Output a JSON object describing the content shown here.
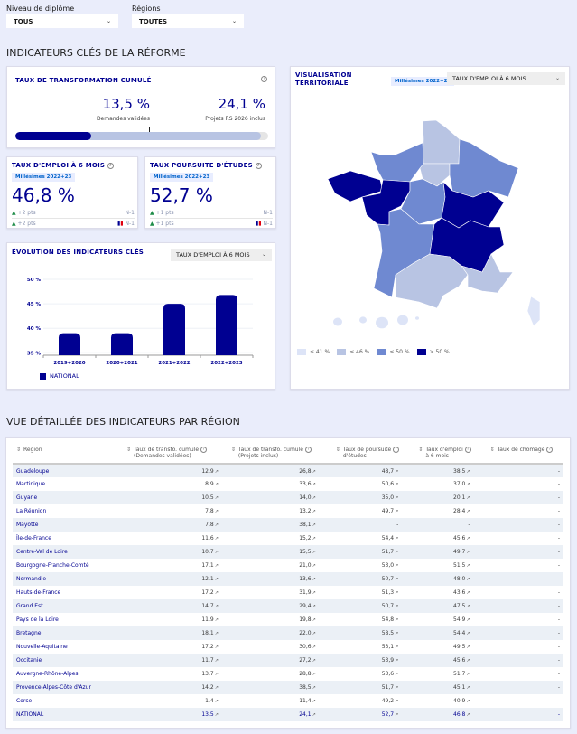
{
  "filters": {
    "diploma_label": "Niveau de diplôme",
    "diploma_value": "TOUS",
    "region_label": "Régions",
    "region_value": "TOUTES"
  },
  "section1_title": "INDICATEURS CLÉS DE LA RÉFORME",
  "transformation": {
    "title": "TAUX DE TRANSFORMATION CUMULÉ",
    "value1": "13,5 %",
    "label1": "Demandes validées",
    "value2": "24,1 %",
    "label2": "Projets RS 2026 inclus",
    "progress1_pct": 13.5,
    "progress2_pct": 24.1
  },
  "emploi": {
    "title": "TAUX D'EMPLOI À 6 MOIS",
    "badge": "Millésimes 2022+23",
    "value": "46,8 %",
    "trend1": "+2 pts",
    "trend1_ref": "N-1",
    "trend2": "+2 pts",
    "trend2_ref": "N-1"
  },
  "poursuite": {
    "title": "TAUX POURSUITE D'ÉTUDES",
    "badge": "Millésimes 2022+23",
    "value": "52,7 %",
    "trend1": "+1 pts",
    "trend1_ref": "N-1",
    "trend2": "+1 pts",
    "trend2_ref": "N-1"
  },
  "evolution": {
    "title": "ÉVOLUTION DES INDICATEURS CLÉS",
    "dropdown": "TAUX D'EMPLOI À 6 MOIS"
  },
  "chart_data": {
    "type": "bar",
    "categories": [
      "2019+2020",
      "2020+2021",
      "2021+2022",
      "2022+2023"
    ],
    "series": [
      {
        "name": "NATIONAL",
        "values": [
          39,
          39,
          45,
          46.8
        ]
      }
    ],
    "yticks": [
      "35 %",
      "40 %",
      "45 %",
      "50 %"
    ],
    "ylim": [
      34.5,
      50
    ],
    "grid": true,
    "legend_position": "bottom-left",
    "color": "#000091"
  },
  "map": {
    "title1": "VISUALISATION",
    "title2": "TERRITORIALE",
    "badge": "Millésimes 2022+23",
    "dropdown": "TAUX D'EMPLOI À 6 MOIS",
    "legend": [
      {
        "label": "≤ 41 %",
        "color": "#dde4f7"
      },
      {
        "label": "≤ 46 %",
        "color": "#b8c4e3"
      },
      {
        "label": "≤ 50 %",
        "color": "#6f89d1"
      },
      {
        "label": "> 50 %",
        "color": "#000091"
      }
    ]
  },
  "section2_title": "VUE DÉTAILLÉE DES INDICATEURS PAR RÉGION",
  "table": {
    "headers": [
      [
        "Région",
        ""
      ],
      [
        "Taux de transfo. cumulé",
        "(Demandes validées)"
      ],
      [
        "Taux de transfo. cumulé",
        "(Projets inclus)"
      ],
      [
        "Taux de poursuite",
        "d'études"
      ],
      [
        "Taux d'emploi",
        "à 6 mois"
      ],
      [
        "Taux de chômage",
        ""
      ]
    ],
    "rows": [
      [
        "Guadeloupe",
        "12,9",
        "26,8",
        "48,7",
        "38,5",
        "-"
      ],
      [
        "Martinique",
        "8,9",
        "33,6",
        "50,6",
        "37,0",
        "-"
      ],
      [
        "Guyane",
        "10,5",
        "14,0",
        "35,0",
        "20,1",
        "-"
      ],
      [
        "La Réunion",
        "7,8",
        "13,2",
        "49,7",
        "28,4",
        "-"
      ],
      [
        "Mayotte",
        "7,8",
        "38,1",
        "-",
        "-",
        "-"
      ],
      [
        "Île-de-France",
        "11,6",
        "15,2",
        "54,4",
        "45,6",
        "-"
      ],
      [
        "Centre-Val de Loire",
        "10,7",
        "15,5",
        "51,7",
        "49,7",
        "-"
      ],
      [
        "Bourgogne-Franche-Comté",
        "17,1",
        "21,0",
        "53,0",
        "51,5",
        "-"
      ],
      [
        "Normandie",
        "12,1",
        "13,6",
        "50,7",
        "48,0",
        "-"
      ],
      [
        "Hauts-de-France",
        "17,2",
        "31,9",
        "51,3",
        "43,6",
        "-"
      ],
      [
        "Grand Est",
        "14,7",
        "29,4",
        "50,7",
        "47,5",
        "-"
      ],
      [
        "Pays de la Loire",
        "11,9",
        "19,8",
        "54,8",
        "54,9",
        "-"
      ],
      [
        "Bretagne",
        "18,1",
        "22,0",
        "58,5",
        "54,4",
        "-"
      ],
      [
        "Nouvelle-Aquitaine",
        "17,2",
        "30,6",
        "53,1",
        "49,5",
        "-"
      ],
      [
        "Occitanie",
        "11,7",
        "27,2",
        "53,9",
        "45,6",
        "-"
      ],
      [
        "Auvergne-Rhône-Alpes",
        "13,7",
        "28,8",
        "53,6",
        "51,7",
        "-"
      ],
      [
        "Provence-Alpes-Côte d'Azur",
        "14,2",
        "38,5",
        "51,7",
        "45,1",
        "-"
      ],
      [
        "Corse",
        "1,4",
        "11,4",
        "49,2",
        "40,9",
        "-"
      ],
      [
        "NATIONAL",
        "13,5",
        "24,1",
        "52,7",
        "46,8",
        "-"
      ]
    ]
  }
}
